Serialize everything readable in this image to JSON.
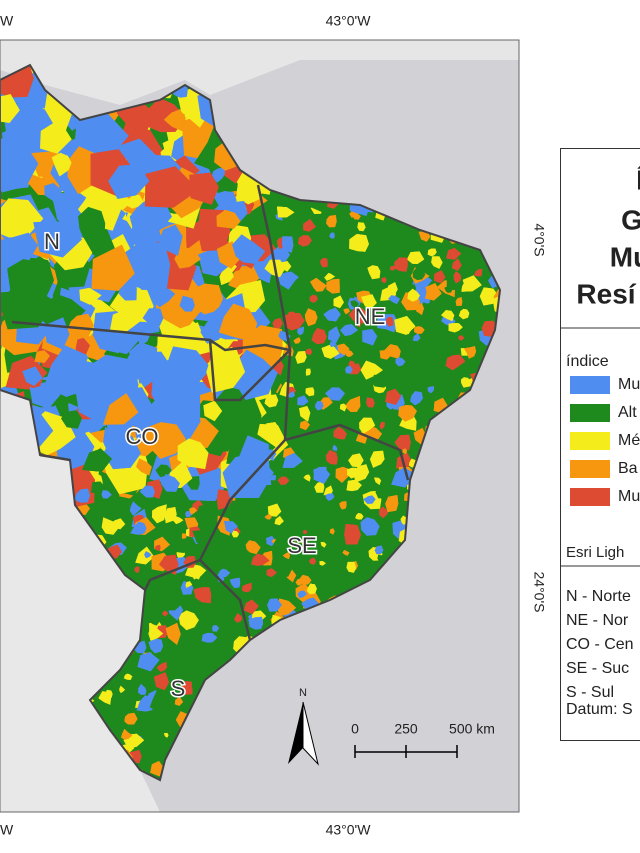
{
  "map": {
    "top_labels": [
      "W",
      "43°0'W"
    ],
    "bottom_labels": [
      "W",
      "43°0'W"
    ],
    "side_labels": [
      "4°0'S",
      "24°0'S"
    ],
    "regions": [
      "N",
      "NE",
      "CO",
      "SE",
      "S"
    ],
    "north": "N",
    "scale": [
      "0",
      "250",
      "500 km"
    ]
  },
  "legend_panel": {
    "title_lines": [
      "Í",
      "G",
      "Mu",
      "Resí"
    ],
    "legend_title": "índice",
    "items": [
      {
        "label": "Mu",
        "color": "#4f8ef0"
      },
      {
        "label": "Alt",
        "color": "#1e8a1e"
      },
      {
        "label": "Mé",
        "color": "#f5ec1c"
      },
      {
        "label": "Ba",
        "color": "#f7960f"
      },
      {
        "label": "Mu",
        "color": "#dc4b32"
      }
    ],
    "basemap": "Esri Ligh",
    "notes": [
      "N - Norte",
      "NE - Nor",
      "CO - Cen",
      "SE - Suc",
      "S - Sul"
    ],
    "datum": "Datum: S"
  }
}
